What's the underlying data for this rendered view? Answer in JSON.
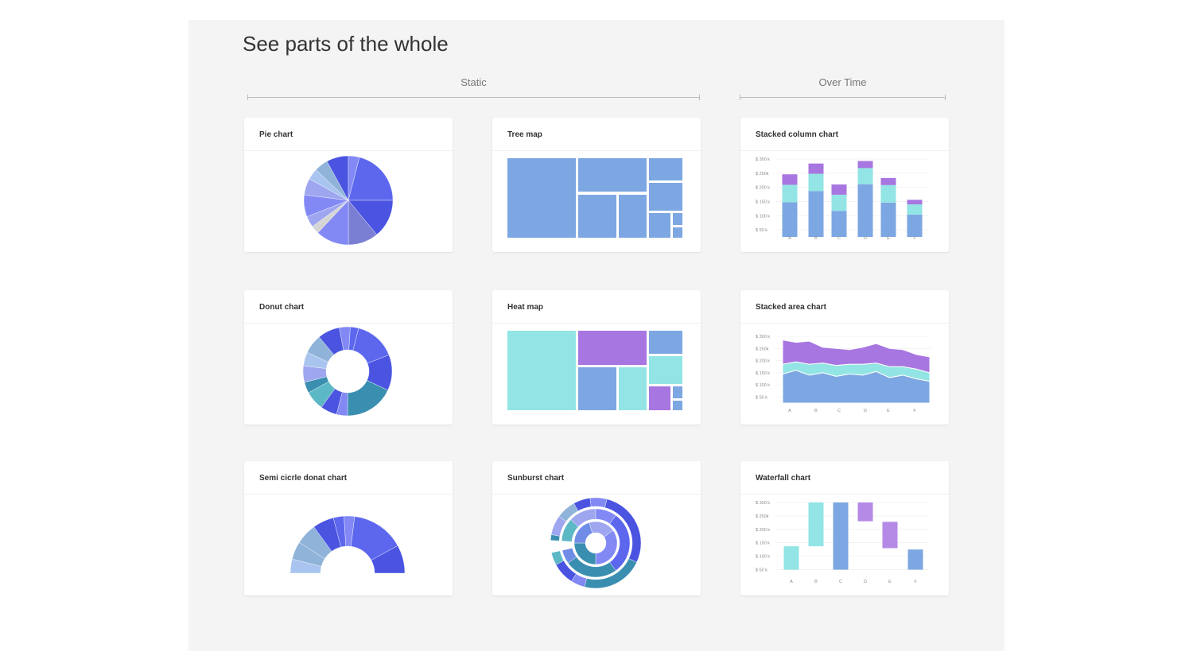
{
  "page": {
    "title": "See parts of the whole",
    "sections": {
      "static": "Static",
      "over_time": "Over Time"
    }
  },
  "colors": {
    "panel_bg": "#f4f4f4",
    "royal_blue": "#4a54e1",
    "indigo": "#5c67ee",
    "periwinkle": "#8289f5",
    "slate_purple": "#7a7fd3",
    "light_periwinkle": "#9ea6f0",
    "steel_blue": "#8fb3d9",
    "sky_blue": "#a9c4ef",
    "soft_blue": "#7da7e2",
    "cornflower": "#6f8de6",
    "teal": "#3a8fb0",
    "aqua": "#5bb8c4",
    "mint": "#92e5e4",
    "purple": "#a776e0",
    "light_gray": "#d5d5d5"
  },
  "cards": {
    "pie": {
      "title": "Pie chart"
    },
    "treemap": {
      "title": "Tree map"
    },
    "stacked_column": {
      "title": "Stacked column chart"
    },
    "donut": {
      "title": "Donut chart"
    },
    "heatmap": {
      "title": "Heat map"
    },
    "stacked_area": {
      "title": "Stacked area chart"
    },
    "semi_donut": {
      "title": "Semi cicrle donat chart"
    },
    "sunburst": {
      "title": "Sunburst chart"
    },
    "waterfall": {
      "title": "Waterfall chart"
    }
  },
  "chart_data": [
    {
      "id": "pie",
      "type": "pie",
      "title": "Pie chart",
      "slices": [
        {
          "value": 21,
          "color": "#5c67ee"
        },
        {
          "value": 14,
          "color": "#4a54e1"
        },
        {
          "value": 11,
          "color": "#7a7fd3"
        },
        {
          "value": 12,
          "color": "#8289f5"
        },
        {
          "value": 3,
          "color": "#d5d5d5"
        },
        {
          "value": 4,
          "color": "#9ea6f0"
        },
        {
          "value": 8,
          "color": "#8289f5"
        },
        {
          "value": 6,
          "color": "#9ea6f0"
        },
        {
          "value": 4,
          "color": "#a9c4ef"
        },
        {
          "value": 5,
          "color": "#8fb3d9"
        },
        {
          "value": 8,
          "color": "#4a54e1"
        },
        {
          "value": 4,
          "color": "#8289f5"
        }
      ]
    },
    {
      "id": "treemap",
      "type": "treemap",
      "title": "Tree map",
      "color": "#7da7e2"
    },
    {
      "id": "stacked_column",
      "type": "bar",
      "title": "Stacked column chart",
      "categories": [
        "A",
        "B",
        "C",
        "D",
        "E",
        "F"
      ],
      "yticks": [
        "$ 50 k",
        "$ 100 k",
        "$ 150 k",
        "$ 200 k",
        "$ 250k",
        "$ 300 k"
      ],
      "ylim": [
        25,
        300
      ],
      "series": [
        {
          "color": "#7da7e2",
          "values": [
            122,
            162,
            92,
            186,
            121,
            79
          ]
        },
        {
          "color": "#92e5e4",
          "values": [
            62,
            61,
            57,
            57,
            62,
            36
          ]
        },
        {
          "color": "#a776e0",
          "values": [
            37,
            36,
            36,
            25,
            25,
            16
          ]
        }
      ]
    },
    {
      "id": "donut",
      "type": "pie",
      "title": "Donut chart",
      "slices": [
        {
          "value": 15,
          "color": "#5c67ee"
        },
        {
          "value": 13,
          "color": "#4a54e1"
        },
        {
          "value": 18,
          "color": "#3a8fb0"
        },
        {
          "value": 4,
          "color": "#8289f5"
        },
        {
          "value": 6,
          "color": "#4a54e1"
        },
        {
          "value": 7,
          "color": "#5bb8c4"
        },
        {
          "value": 4,
          "color": "#3a8fb0"
        },
        {
          "value": 6,
          "color": "#9ea6f0"
        },
        {
          "value": 5,
          "color": "#a9c4ef"
        },
        {
          "value": 7,
          "color": "#8fb3d9"
        },
        {
          "value": 8,
          "color": "#4a54e1"
        },
        {
          "value": 4,
          "color": "#8289f5"
        },
        {
          "value": 3,
          "color": "#5c67ee"
        }
      ]
    },
    {
      "id": "heatmap",
      "type": "heatmap",
      "title": "Heat map"
    },
    {
      "id": "stacked_area",
      "type": "area",
      "title": "Stacked area chart",
      "categories": [
        "A",
        "B",
        "C",
        "D",
        "E",
        "F"
      ],
      "yticks": [
        "$ 50 k",
        "$ 100 k",
        "$ 150 k",
        "$ 200 k",
        "$ 250k",
        "$ 300 k"
      ],
      "ylim": [
        25,
        300
      ],
      "x": [
        0,
        0.5,
        1,
        1.5,
        2,
        2.5,
        3,
        3.5,
        4,
        4.5,
        5,
        5.5
      ],
      "series": [
        {
          "color": "#7da7e2",
          "values": [
            120,
            135,
            115,
            125,
            110,
            120,
            115,
            130,
            105,
            115,
            100,
            90
          ]
        },
        {
          "color": "#92e5e4",
          "values": [
            40,
            35,
            45,
            40,
            45,
            40,
            45,
            35,
            45,
            35,
            40,
            35
          ]
        },
        {
          "color": "#a776e0",
          "values": [
            100,
            80,
            95,
            65,
            70,
            60,
            70,
            80,
            75,
            70,
            60,
            65
          ]
        }
      ]
    },
    {
      "id": "semi_donut",
      "type": "pie",
      "title": "Semi cicrle donat chart",
      "slices": [
        {
          "value": 8,
          "color": "#a9c4ef"
        },
        {
          "value": 10,
          "color": "#8fb3d9"
        },
        {
          "value": 12,
          "color": "#8fb3d9"
        },
        {
          "value": 12,
          "color": "#4a54e1"
        },
        {
          "value": 6,
          "color": "#5c67ee"
        },
        {
          "value": 6,
          "color": "#8289f5"
        },
        {
          "value": 30,
          "color": "#5c67ee"
        },
        {
          "value": 16,
          "color": "#4a54e1"
        }
      ]
    },
    {
      "id": "sunburst",
      "type": "pie",
      "title": "Sunburst chart"
    },
    {
      "id": "waterfall",
      "type": "bar",
      "title": "Waterfall chart",
      "categories": [
        "A",
        "B",
        "C",
        "D",
        "E",
        "F"
      ],
      "yticks": [
        "$ 50 k",
        "$ 100 k",
        "$ 150 k",
        "$ 200 k",
        "$ 250k",
        "$ 300 k"
      ],
      "ylim": [
        25,
        300
      ],
      "bars": [
        {
          "low": 50,
          "high": 137,
          "color": "#92e5e4"
        },
        {
          "low": 137,
          "high": 320,
          "color": "#92e5e4"
        },
        {
          "low": 50,
          "high": 320,
          "color": "#7da7e2"
        },
        {
          "low": 230,
          "high": 320,
          "color": "#b58ae6"
        },
        {
          "low": 130,
          "high": 228,
          "color": "#b58ae6"
        },
        {
          "low": 50,
          "high": 125,
          "color": "#7da7e2"
        }
      ]
    }
  ]
}
